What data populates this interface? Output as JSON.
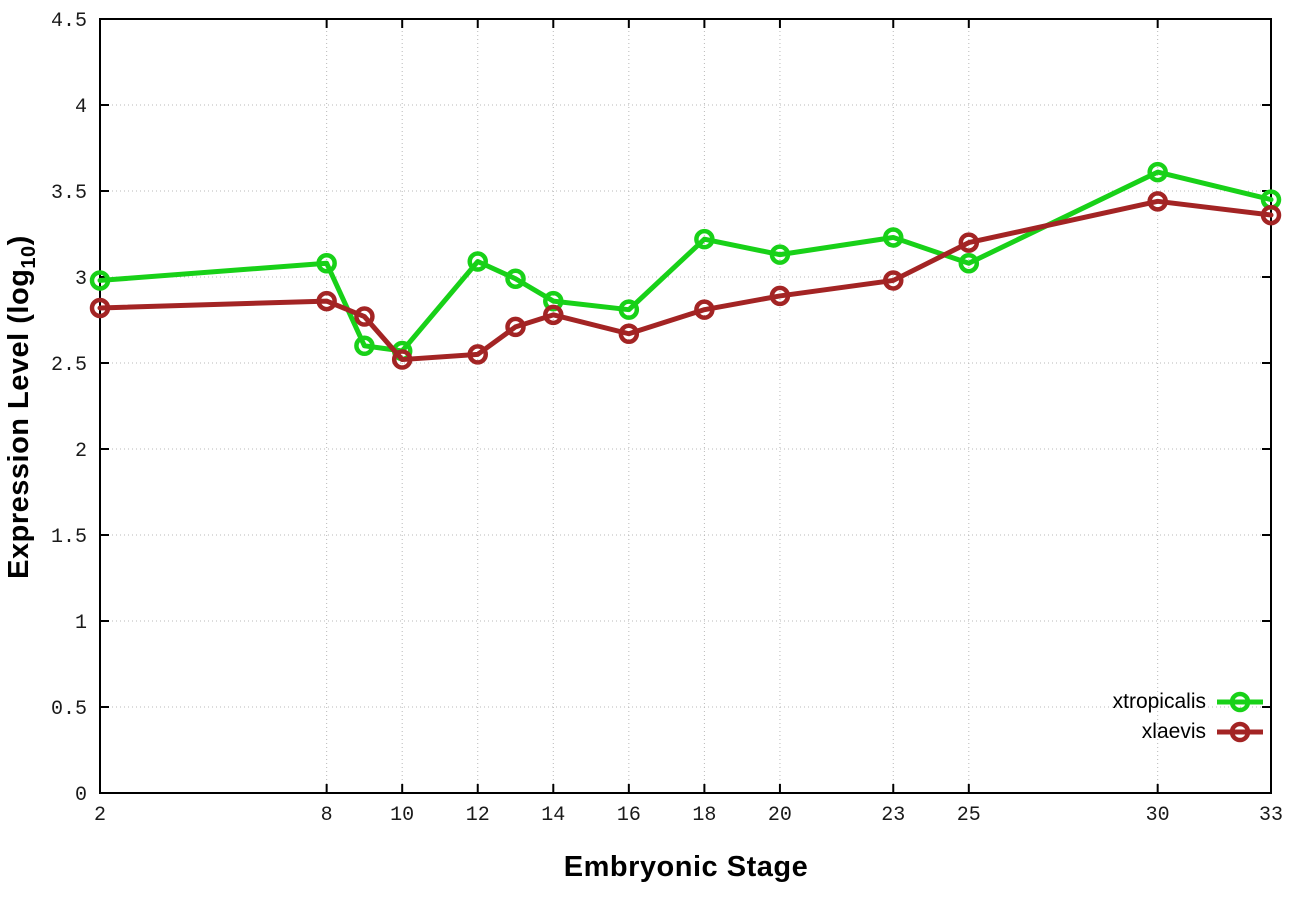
{
  "chart_data": {
    "type": "line",
    "title": "",
    "xlabel": "Embryonic Stage",
    "ylabel": "Expression Level (log10)",
    "ylabel_parts": {
      "prefix": "Expression Level (log",
      "sub": "10",
      "suffix": ")"
    },
    "x": [
      2,
      8,
      9,
      10,
      12,
      13,
      14,
      16,
      18,
      20,
      23,
      25,
      30,
      33
    ],
    "series": [
      {
        "name": "xtropicalis",
        "color": "#18d118",
        "values": [
          2.98,
          3.08,
          2.6,
          2.57,
          3.09,
          2.99,
          2.86,
          2.81,
          3.22,
          3.13,
          3.23,
          3.08,
          3.61,
          3.45
        ]
      },
      {
        "name": "xlaevis",
        "color": "#a32424",
        "values": [
          2.82,
          2.86,
          2.77,
          2.52,
          2.55,
          2.71,
          2.78,
          2.67,
          2.81,
          2.89,
          2.98,
          3.2,
          3.44,
          3.36
        ]
      }
    ],
    "xticks": [
      2,
      8,
      10,
      12,
      14,
      16,
      18,
      20,
      23,
      25,
      30,
      33
    ],
    "yticks": [
      0,
      0.5,
      1,
      1.5,
      2,
      2.5,
      3,
      3.5,
      4,
      4.5
    ],
    "xlim": [
      2,
      33
    ],
    "ylim": [
      0,
      4.5
    ],
    "grid": true,
    "legend_position": "bottom-right",
    "marker": "open-circle",
    "colors": {
      "background": "#ffffff",
      "border": "#000000",
      "grid": "#b8b8b8",
      "tick_text": "#1a1a1a"
    }
  }
}
